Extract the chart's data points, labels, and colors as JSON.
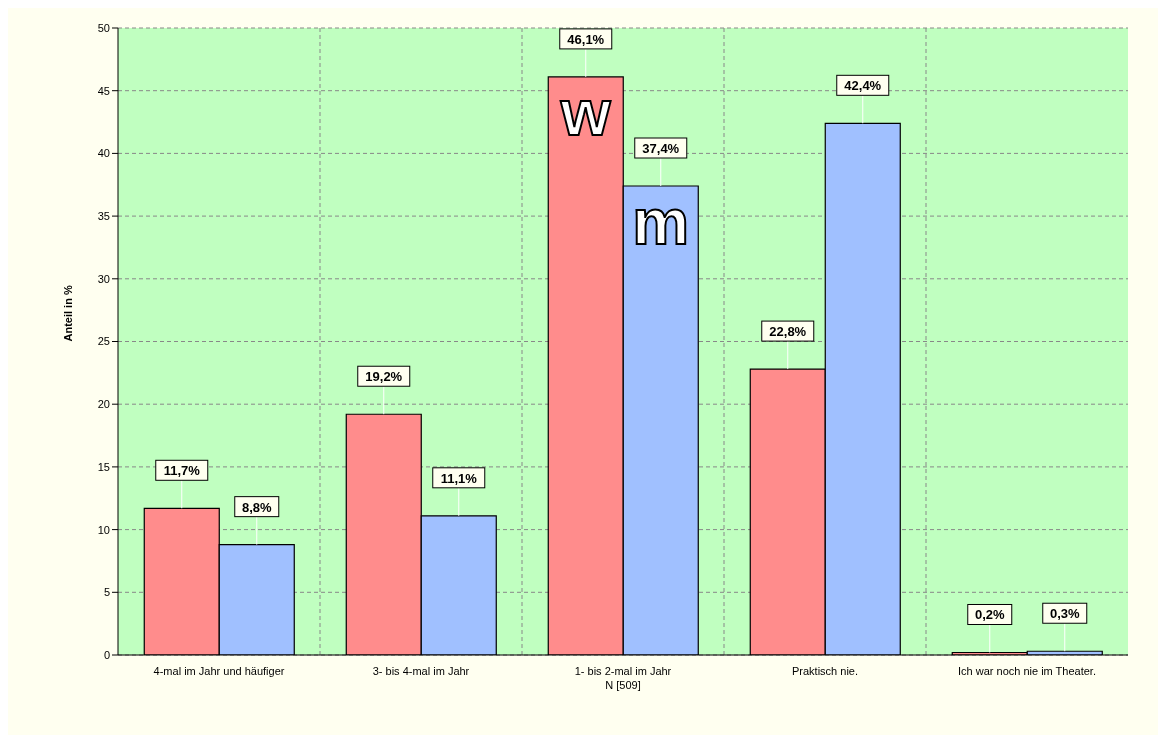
{
  "chart_data": {
    "type": "bar",
    "ylabel": "Anteil in %",
    "xlabel": "N [509]",
    "categories": [
      "4-mal im Jahr und häufiger",
      "3- bis 4-mal im Jahr",
      "1- bis 2-mal im Jahr",
      "Praktisch nie.",
      "Ich war noch nie im Theater."
    ],
    "series": [
      {
        "name": "w",
        "color": "#ff8c8c",
        "values": [
          11.7,
          19.2,
          46.1,
          22.8,
          0.2
        ],
        "value_labels": [
          "11,7%",
          "19,2%",
          "46,1%",
          "22,8%",
          "0,2%"
        ]
      },
      {
        "name": "m",
        "color": "#a0c0ff",
        "values": [
          8.8,
          11.1,
          37.4,
          42.4,
          0.3
        ],
        "value_labels": [
          "8,8%",
          "11,1%",
          "37,4%",
          "42,4%",
          "0,3%"
        ]
      }
    ],
    "ylim": [
      0,
      50
    ],
    "yticks": [
      0,
      5,
      10,
      15,
      20,
      25,
      30,
      35,
      40,
      45,
      50
    ],
    "grid": true
  }
}
